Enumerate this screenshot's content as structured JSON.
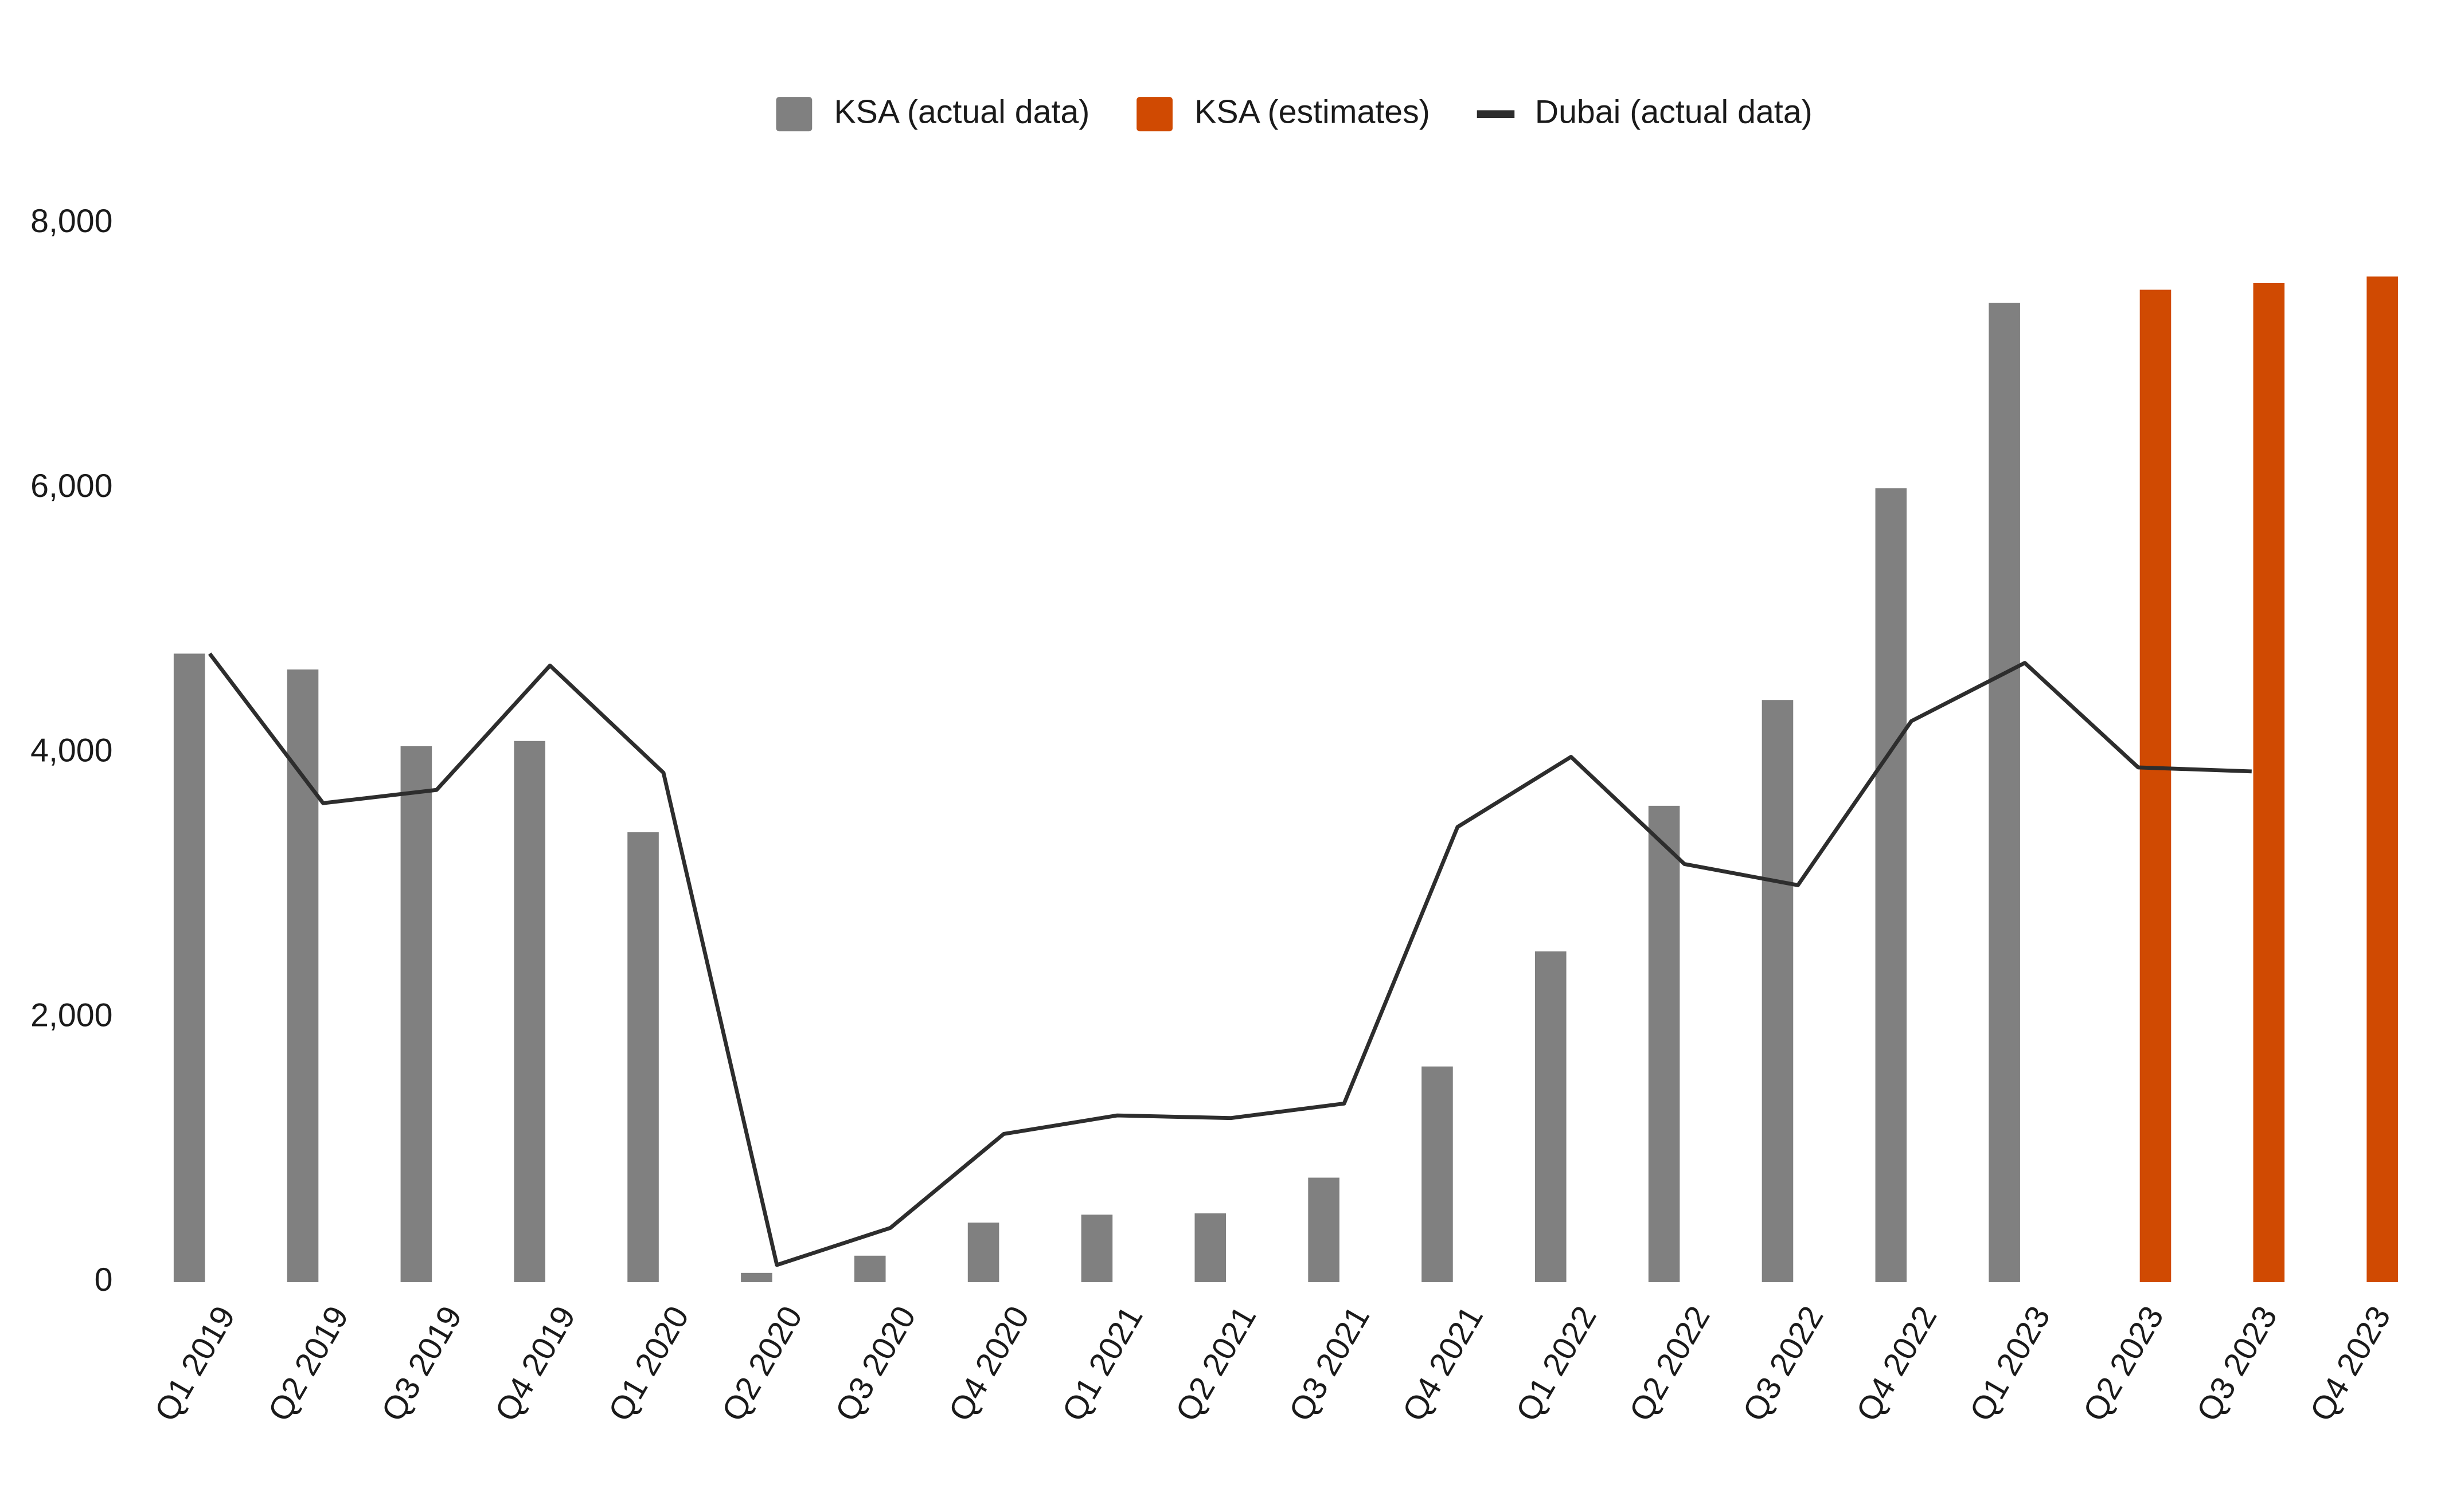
{
  "chart_data": {
    "type": "bar",
    "categories": [
      "Q1 2019",
      "Q2 2019",
      "Q3 2019",
      "Q4 2019",
      "Q1 2020",
      "Q2 2020",
      "Q3 2020",
      "Q4 2020",
      "Q1 2021",
      "Q2 2021",
      "Q3 2021",
      "Q4 2021",
      "Q1 2022",
      "Q2 2022",
      "Q3 2022",
      "Q4 2022",
      "Q1 2023",
      "Q2 2023",
      "Q3 2023",
      "Q4 2023"
    ],
    "series": [
      {
        "name": "KSA (actual data)",
        "type": "bar",
        "color": "#808080",
        "values": [
          4750,
          4630,
          4050,
          4090,
          3400,
          70,
          200,
          450,
          510,
          520,
          790,
          1630,
          2500,
          3600,
          4400,
          6000,
          7400,
          null,
          null,
          null
        ]
      },
      {
        "name": "KSA (estimates)",
        "type": "bar",
        "color": "#d04a02",
        "values": [
          null,
          null,
          null,
          null,
          null,
          null,
          null,
          null,
          null,
          null,
          null,
          null,
          null,
          null,
          null,
          null,
          null,
          7500,
          7550,
          7600
        ]
      },
      {
        "name": "Dubai (actual data)",
        "type": "line",
        "color": "#2d2d2d",
        "values": [
          4750,
          3620,
          3720,
          4660,
          3850,
          130,
          410,
          1120,
          1260,
          1240,
          1350,
          3440,
          3970,
          3160,
          3000,
          4240,
          4680,
          3890,
          3860,
          null
        ]
      }
    ],
    "ylim": [
      0,
      8000
    ],
    "yticks": [
      0,
      {
        "value": 2000,
        "label": "2,000"
      },
      {
        "value": 4000,
        "label": "4,000"
      },
      {
        "value": 6000,
        "label": "6,000"
      },
      {
        "value": 8000,
        "label": "8,000"
      }
    ],
    "grid": false,
    "legend": "top"
  }
}
